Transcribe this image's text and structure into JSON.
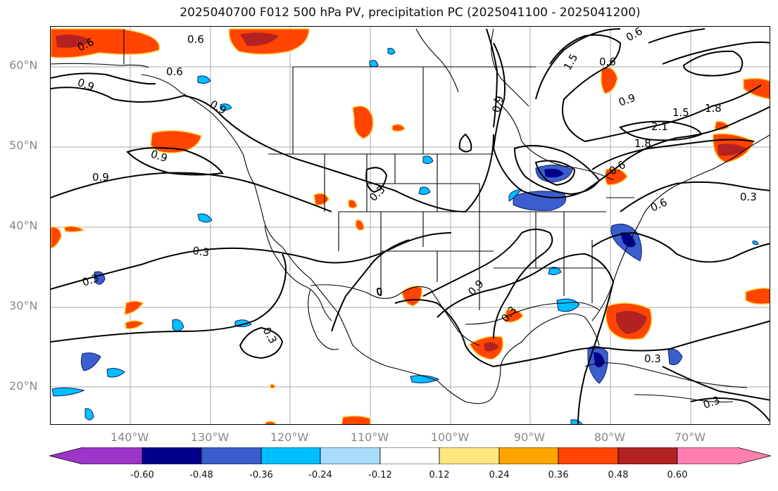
{
  "title": "2025040700 F012 500 hPa PV, precipitation PC (2025041100 - 2025041200)",
  "lat_labels": [
    "60°N",
    "50°N",
    "40°N",
    "30°N",
    "20°N"
  ],
  "lon_labels": [
    "140°W",
    "130°W",
    "120°W",
    "110°W",
    "100°W",
    "90°W",
    "80°W",
    "70°W"
  ],
  "contour_labels": [
    "0.6",
    "0.9",
    "0.6",
    "0.9",
    "0.9",
    "0.9",
    "0.3",
    "0.3",
    "0.3",
    "0.3",
    "0.9",
    "1.5",
    "0.6",
    "0.9",
    "1.5",
    "1.8",
    "2.1",
    "1.8",
    "0.6",
    "0.6",
    "0.3",
    "0.9",
    "0.3",
    "0.3",
    "0.3",
    "0.6",
    "0.6"
  ],
  "colorbar": {
    "ticks": [
      "-0.60",
      "-0.48",
      "-0.36",
      "-0.24",
      "-0.12",
      "0.12",
      "0.24",
      "0.36",
      "0.48",
      "0.60"
    ],
    "colors": [
      "#9c35c8",
      "#00008b",
      "#3a5fcd",
      "#00bfff",
      "#a8dcfa",
      "#ffffff",
      "#ffe680",
      "#ffa500",
      "#ff4500",
      "#b22222",
      "#ff80b0"
    ]
  }
}
